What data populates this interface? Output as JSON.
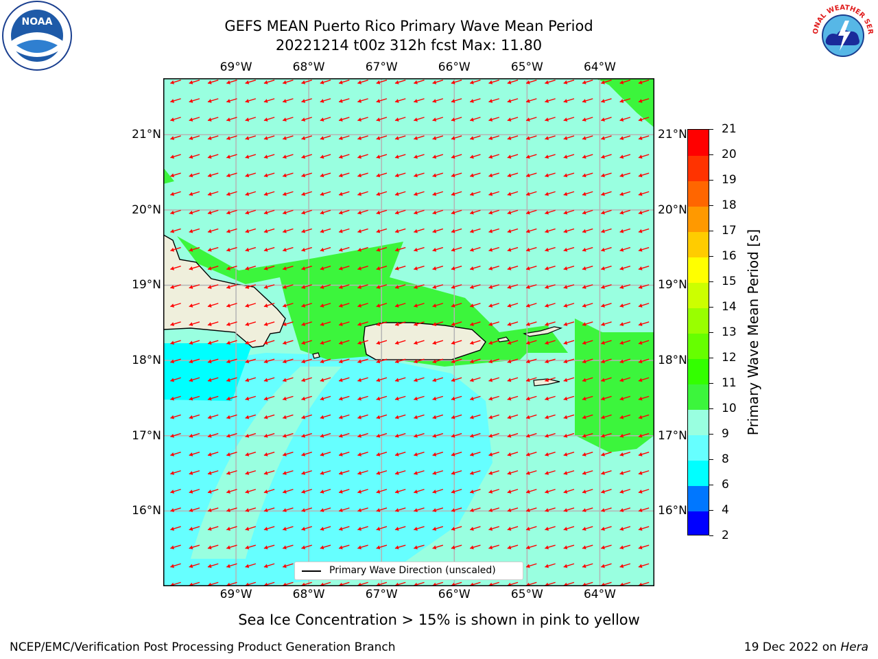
{
  "title_line1": "GEFS MEAN Puerto Rico Primary Wave Mean Period",
  "title_line2": "20221214 t00z 312h fcst   Max: 11.80",
  "logos": {
    "noaa_text": "NOAA",
    "nws_text": "NATIONAL WEATHER SERVICE"
  },
  "map": {
    "lon_labels": [
      "69°W",
      "68°W",
      "67°W",
      "66°W",
      "65°W",
      "64°W"
    ],
    "lon_values": [
      -69,
      -68,
      -67,
      -66,
      -65,
      -64
    ],
    "lat_labels": [
      "21°N",
      "20°N",
      "19°N",
      "18°N",
      "17°N",
      "16°N"
    ],
    "lat_values": [
      21,
      20,
      19,
      18,
      17,
      16
    ],
    "extent": {
      "lon_min": -70.0,
      "lon_max": -63.25,
      "lat_min": 15.0,
      "lat_max": 21.75
    },
    "field": "Primary Wave Mean Period",
    "units": "s",
    "max_value": 11.8,
    "wave_direction": "east-northeast toward west-southwest",
    "colors": {
      "land": "#efefdc",
      "coast": "#000000",
      "arrow": "#ff0000",
      "grid": "#b4b4b4"
    }
  },
  "legend": {
    "line_label": "Primary Wave Direction (unscaled)"
  },
  "colorbar": {
    "ticks": [
      2,
      4,
      6,
      8,
      9,
      10,
      11,
      12,
      13,
      14,
      15,
      16,
      17,
      18,
      19,
      20,
      21
    ],
    "colors": [
      "#0000ff",
      "#0077ff",
      "#00ffff",
      "#66ffff",
      "#99ffe0",
      "#3cf53c",
      "#33ff00",
      "#66ff00",
      "#99ff00",
      "#ccff00",
      "#ffff00",
      "#ffcc00",
      "#ff9900",
      "#ff6600",
      "#ff3300",
      "#ff0000"
    ],
    "title": "Primary Wave Mean Period [s]"
  },
  "footnote": "Sea Ice Concentration > 15% is shown in pink to yellow",
  "footer_left": "NCEP/EMC/Verification Post Processing Product Generation Branch",
  "footer_date": "19 Dec 2022 on ",
  "footer_host": "Hera"
}
